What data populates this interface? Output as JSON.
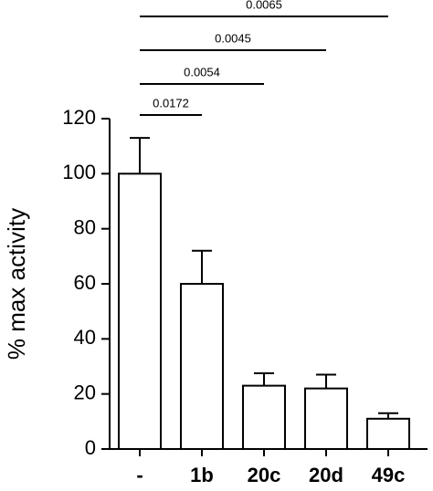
{
  "chart_data": {
    "type": "bar",
    "ylabel": "% max activity",
    "categories": [
      "-",
      "1b",
      "20c",
      "20d",
      "49c"
    ],
    "values": [
      100,
      60,
      23,
      22,
      11
    ],
    "errors": [
      13,
      12,
      4.5,
      5,
      2
    ],
    "color": "#ffffff",
    "ylim": [
      0,
      120
    ],
    "yticks": [
      0,
      20,
      40,
      60,
      80,
      100,
      120
    ],
    "annotations": [
      {
        "label": "0.0172",
        "groups": [
          "-",
          "1b"
        ]
      },
      {
        "label": "0.0054",
        "groups": [
          "-",
          "20c"
        ]
      },
      {
        "label": "0.0045",
        "groups": [
          "-",
          "20d"
        ]
      },
      {
        "label": "0.0065",
        "groups": [
          "-",
          "49c"
        ]
      }
    ]
  }
}
